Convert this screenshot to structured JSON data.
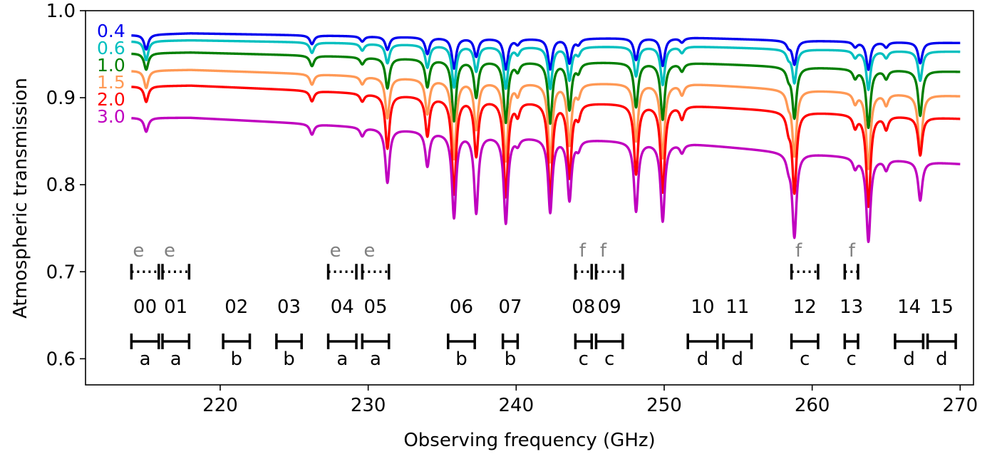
{
  "chart_data": {
    "type": "line",
    "title": "",
    "xlabel": "Observing frequency (GHz)",
    "ylabel": "Atmospheric transmission",
    "xlim": [
      210.9,
      270.9
    ],
    "ylim": [
      0.57,
      1.0
    ],
    "xticks": [
      220,
      230,
      240,
      250,
      260,
      270
    ],
    "xtick_labels": [
      "220",
      "230",
      "240",
      "250",
      "260",
      "270"
    ],
    "yticks": [
      0.6,
      0.7,
      0.8,
      0.9,
      1.0
    ],
    "ytick_labels": [
      "0.6",
      "0.7",
      "0.8",
      "0.9",
      "1.0"
    ],
    "grid": false,
    "legend": "inline labels at left",
    "series": [
      {
        "name": "0.4",
        "color": "#0000ee",
        "base": [
          [
            214,
            0.972
          ],
          [
            218,
            0.974
          ],
          [
            225,
            0.972
          ],
          [
            240,
            0.968
          ],
          [
            252,
            0.969
          ],
          [
            258,
            0.966
          ],
          [
            270,
            0.963
          ]
        ],
        "dips": [
          [
            215,
            0.017
          ],
          [
            226.2,
            0.01
          ],
          [
            229.6,
            0.006
          ],
          [
            231.3,
            0.015
          ],
          [
            234,
            0.019
          ],
          [
            235.8,
            0.035
          ],
          [
            237.3,
            0.021
          ],
          [
            239.3,
            0.035
          ],
          [
            240.1,
            0.006
          ],
          [
            242.3,
            0.035
          ],
          [
            243.6,
            0.028
          ],
          [
            244.2,
            0.006
          ],
          [
            248.1,
            0.025
          ],
          [
            249.9,
            0.032
          ],
          [
            251.2,
            0.005
          ],
          [
            258.4,
            0.006
          ],
          [
            258.8,
            0.027
          ],
          [
            262.9,
            0.006
          ],
          [
            263.8,
            0.032
          ],
          [
            265,
            0.006
          ],
          [
            267.3,
            0.024
          ]
        ]
      },
      {
        "name": "0.6",
        "color": "#00bfbf",
        "base": [
          [
            214,
            0.965
          ],
          [
            218,
            0.966
          ],
          [
            225,
            0.964
          ],
          [
            240,
            0.959
          ],
          [
            252,
            0.959
          ],
          [
            258,
            0.956
          ],
          [
            270,
            0.953
          ]
        ],
        "dips": [
          [
            215,
            0.022
          ],
          [
            226.2,
            0.012
          ],
          [
            229.6,
            0.008
          ],
          [
            231.3,
            0.022
          ],
          [
            234,
            0.026
          ],
          [
            235.8,
            0.048
          ],
          [
            237.3,
            0.029
          ],
          [
            239.3,
            0.048
          ],
          [
            240.1,
            0.008
          ],
          [
            242.3,
            0.048
          ],
          [
            243.6,
            0.038
          ],
          [
            244.2,
            0.008
          ],
          [
            248.1,
            0.034
          ],
          [
            249.9,
            0.044
          ],
          [
            251.2,
            0.007
          ],
          [
            258.4,
            0.008
          ],
          [
            258.8,
            0.038
          ],
          [
            262.9,
            0.008
          ],
          [
            263.8,
            0.045
          ],
          [
            265,
            0.008
          ],
          [
            267.3,
            0.034
          ]
        ]
      },
      {
        "name": "1.0",
        "color": "#007f00",
        "base": [
          [
            214,
            0.951
          ],
          [
            218,
            0.952
          ],
          [
            225,
            0.949
          ],
          [
            240,
            0.942
          ],
          [
            252,
            0.94
          ],
          [
            258,
            0.936
          ],
          [
            270,
            0.93
          ]
        ],
        "dips": [
          [
            215,
            0.019
          ],
          [
            226.2,
            0.012
          ],
          [
            229.6,
            0.008
          ],
          [
            231.3,
            0.035
          ],
          [
            234,
            0.032
          ],
          [
            235.8,
            0.07
          ],
          [
            237.3,
            0.042
          ],
          [
            239.3,
            0.07
          ],
          [
            240.1,
            0.01
          ],
          [
            242.3,
            0.07
          ],
          [
            243.6,
            0.054
          ],
          [
            244.2,
            0.01
          ],
          [
            248.1,
            0.051
          ],
          [
            249.9,
            0.065
          ],
          [
            251.2,
            0.009
          ],
          [
            258.4,
            0.01
          ],
          [
            258.8,
            0.058
          ],
          [
            262.9,
            0.01
          ],
          [
            263.8,
            0.067
          ],
          [
            265,
            0.01
          ],
          [
            267.3,
            0.052
          ]
        ]
      },
      {
        "name": "1.5",
        "color": "#ff9955",
        "base": [
          [
            214,
            0.931
          ],
          [
            218,
            0.932
          ],
          [
            225,
            0.928
          ],
          [
            240,
            0.918
          ],
          [
            252,
            0.916
          ],
          [
            258,
            0.91
          ],
          [
            270,
            0.902
          ]
        ],
        "dips": [
          [
            215,
            0.02
          ],
          [
            226.2,
            0.012
          ],
          [
            229.6,
            0.009
          ],
          [
            231.3,
            0.047
          ],
          [
            234,
            0.04
          ],
          [
            235.8,
            0.09
          ],
          [
            237.3,
            0.055
          ],
          [
            239.3,
            0.09
          ],
          [
            240.1,
            0.013
          ],
          [
            242.3,
            0.09
          ],
          [
            243.6,
            0.07
          ],
          [
            244.2,
            0.013
          ],
          [
            248.1,
            0.066
          ],
          [
            249.9,
            0.085
          ],
          [
            251.2,
            0.012
          ],
          [
            258.4,
            0.013
          ],
          [
            258.8,
            0.075
          ],
          [
            262.9,
            0.012
          ],
          [
            263.8,
            0.087
          ],
          [
            265,
            0.013
          ],
          [
            267.3,
            0.066
          ]
        ]
      },
      {
        "name": "2.0",
        "color": "#ff0000",
        "base": [
          [
            214,
            0.913
          ],
          [
            218,
            0.914
          ],
          [
            225,
            0.909
          ],
          [
            240,
            0.897
          ],
          [
            252,
            0.891
          ],
          [
            258,
            0.885
          ],
          [
            270,
            0.876
          ]
        ],
        "dips": [
          [
            215,
            0.018
          ],
          [
            226.2,
            0.012
          ],
          [
            229.6,
            0.009
          ],
          [
            231.3,
            0.062
          ],
          [
            234,
            0.045
          ],
          [
            235.8,
            0.11
          ],
          [
            237.3,
            0.065
          ],
          [
            239.3,
            0.11
          ],
          [
            240.1,
            0.015
          ],
          [
            242.3,
            0.11
          ],
          [
            243.6,
            0.085
          ],
          [
            244.2,
            0.015
          ],
          [
            248.1,
            0.08
          ],
          [
            249.9,
            0.1
          ],
          [
            251.2,
            0.015
          ],
          [
            258.4,
            0.016
          ],
          [
            258.8,
            0.092
          ],
          [
            262.9,
            0.014
          ],
          [
            263.8,
            0.105
          ],
          [
            265,
            0.015
          ],
          [
            267.3,
            0.044
          ]
        ]
      },
      {
        "name": "3.0",
        "color": "#bf00bf",
        "base": [
          [
            214,
            0.877
          ],
          [
            218,
            0.877
          ],
          [
            225,
            0.871
          ],
          [
            240,
            0.856
          ],
          [
            252,
            0.847
          ],
          [
            258,
            0.838
          ],
          [
            270,
            0.824
          ]
        ],
        "dips": [
          [
            215,
            0.016
          ],
          [
            226.2,
            0.012
          ],
          [
            229.6,
            0.01
          ],
          [
            231.3,
            0.062
          ],
          [
            234,
            0.04
          ],
          [
            235.8,
            0.097
          ],
          [
            237.3,
            0.09
          ],
          [
            239.3,
            0.1
          ],
          [
            240.1,
            0.008
          ],
          [
            242.3,
            0.085
          ],
          [
            243.6,
            0.07
          ],
          [
            244.2,
            0.01
          ],
          [
            248.1,
            0.08
          ],
          [
            249.9,
            0.09
          ],
          [
            251.2,
            0.01
          ],
          [
            258.4,
            0.012
          ],
          [
            258.8,
            0.096
          ],
          [
            262.9,
            0.012
          ],
          [
            263.8,
            0.096
          ],
          [
            265,
            0.012
          ],
          [
            267.3,
            0.045
          ]
        ]
      }
    ],
    "dip_width": 0.17,
    "band_marker_y": 0.62,
    "band_number_y": 0.66,
    "sideband_marker_y": 0.7,
    "sideband_letter_y": 0.725,
    "bands": [
      {
        "label": "00",
        "letter": "a",
        "range": [
          214.0,
          215.85
        ]
      },
      {
        "label": "01",
        "letter": "a",
        "range": [
          216.1,
          217.9
        ]
      },
      {
        "label": "02",
        "letter": "b",
        "range": [
          220.2,
          222.0
        ]
      },
      {
        "label": "03",
        "letter": "b",
        "range": [
          223.8,
          225.5
        ]
      },
      {
        "label": "04",
        "letter": "a",
        "range": [
          227.3,
          229.2
        ]
      },
      {
        "label": "05",
        "letter": "a",
        "range": [
          229.6,
          231.4
        ]
      },
      {
        "label": "06",
        "letter": "b",
        "range": [
          235.4,
          237.2
        ]
      },
      {
        "label": "07",
        "letter": "b",
        "range": [
          239.1,
          240.1
        ]
      },
      {
        "label": "08",
        "letter": "c",
        "range": [
          244.0,
          245.1
        ]
      },
      {
        "label": "09",
        "letter": "c",
        "range": [
          245.4,
          247.2
        ]
      },
      {
        "label": "10",
        "letter": "d",
        "range": [
          251.6,
          253.6
        ]
      },
      {
        "label": "11",
        "letter": "d",
        "range": [
          254.0,
          255.9
        ]
      },
      {
        "label": "12",
        "letter": "c",
        "range": [
          258.6,
          260.4
        ]
      },
      {
        "label": "13",
        "letter": "c",
        "range": [
          262.2,
          263.1
        ]
      },
      {
        "label": "14",
        "letter": "d",
        "range": [
          265.6,
          267.5
        ]
      },
      {
        "label": "15",
        "letter": "d",
        "range": [
          267.8,
          269.7
        ]
      }
    ],
    "sidebands": [
      {
        "letter": "e",
        "range": [
          214.0,
          215.85
        ]
      },
      {
        "letter": "e",
        "range": [
          216.1,
          217.9
        ]
      },
      {
        "letter": "e",
        "range": [
          227.3,
          229.2
        ]
      },
      {
        "letter": "e",
        "range": [
          229.6,
          231.4
        ]
      },
      {
        "letter": "f",
        "range": [
          244.0,
          245.1
        ]
      },
      {
        "letter": "f",
        "range": [
          245.4,
          247.2
        ]
      },
      {
        "letter": "f",
        "range": [
          258.6,
          260.4
        ]
      },
      {
        "letter": "f",
        "range": [
          262.2,
          263.1
        ]
      }
    ],
    "colors": {
      "band": "#000000",
      "sideband_marker": "#000000",
      "sideband_letter": "#808080"
    }
  }
}
